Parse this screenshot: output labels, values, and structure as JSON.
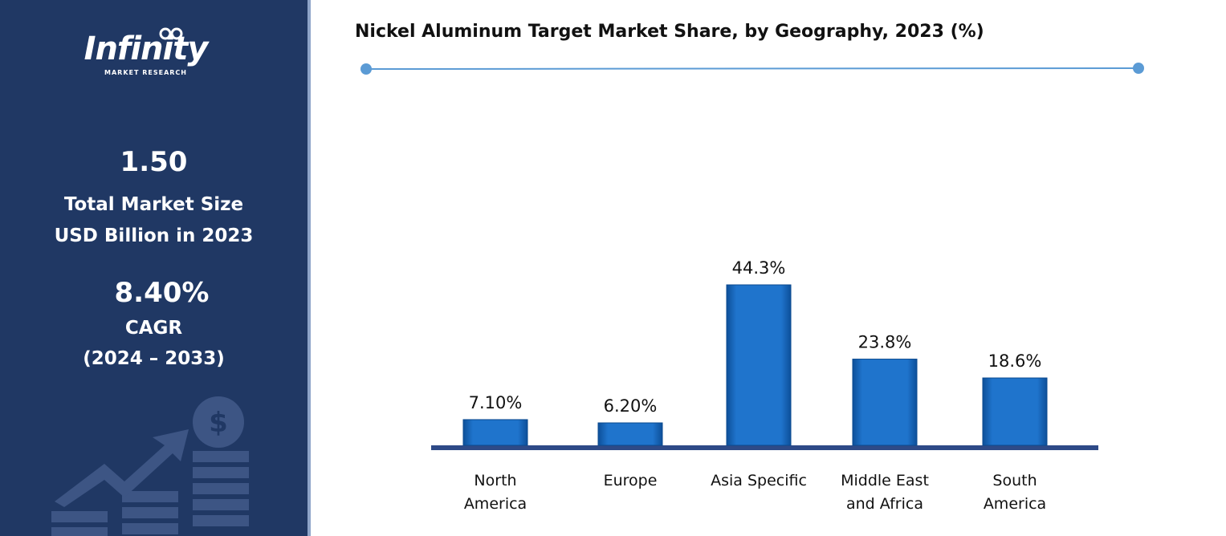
{
  "sidebar": {
    "brand": "Infinity",
    "brand_sub": "MARKET RESEARCH",
    "market_size": "1.50",
    "market_size_label_1": "Total Market Size",
    "market_size_label_2": "USD Billion in 2023",
    "cagr": "8.40%",
    "cagr_label": "CAGR",
    "cagr_period": "(2024 – 2033)"
  },
  "chart_data": {
    "type": "bar",
    "title": "Nickel Aluminum Target Market Share, by Geography, 2023 (%)",
    "categories": [
      "North America",
      "Europe",
      "Asia Specific",
      "Middle East and Africa",
      "South America"
    ],
    "values": [
      7.1,
      6.2,
      44.3,
      23.8,
      18.6
    ],
    "value_labels": [
      "7.10%",
      "6.20%",
      "44.3%",
      "23.8%",
      "18.6%"
    ],
    "color": "#1f6fc4"
  }
}
